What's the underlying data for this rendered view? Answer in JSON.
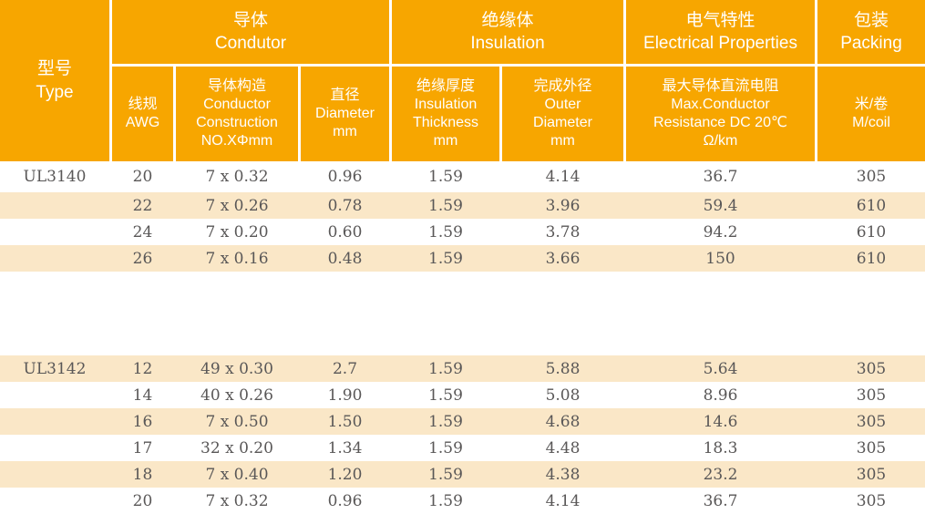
{
  "colors": {
    "header_background": "#F7A600",
    "stripe_background": "#FAE7C7",
    "header_text": "#FFFFFF",
    "body_text": "#595757"
  },
  "header": {
    "type": "型号\nType",
    "groups": {
      "conductor": "导体\nCondutor",
      "insulation": "绝缘体\nInsulation",
      "electrical": "电气特性\nElectrical Properties",
      "packing": "包装\nPacking"
    },
    "columns": {
      "awg": "线规\nAWG",
      "construction": "导体构造\nConductor\nConstruction\nNO.XΦmm",
      "diameter": "直径\nDiameter\nmm",
      "thickness": "绝缘厚度\nInsulation\nThickness\nmm",
      "outer": "完成外径\nOuter\nDiameter\nmm",
      "resistance": "最大导体直流电阻\nMax.Conductor\nResistance DC 20℃\nΩ/km",
      "coil": "米/卷\nM/coil"
    }
  },
  "rows": [
    {
      "type": "UL3140",
      "awg": "20",
      "construction": "7 x 0.32",
      "diameter": "0.96",
      "thickness": "1.59",
      "outer": "4.14",
      "resistance": "36.7",
      "coil": "305"
    },
    {
      "type": "",
      "awg": "22",
      "construction": "7 x 0.26",
      "diameter": "0.78",
      "thickness": "1.59",
      "outer": "3.96",
      "resistance": "59.4",
      "coil": "610"
    },
    {
      "type": "",
      "awg": "24",
      "construction": "7 x 0.20",
      "diameter": "0.60",
      "thickness": "1.59",
      "outer": "3.78",
      "resistance": "94.2",
      "coil": "610"
    },
    {
      "type": "",
      "awg": "26",
      "construction": "7 x 0.16",
      "diameter": "0.48",
      "thickness": "1.59",
      "outer": "3.66",
      "resistance": "150",
      "coil": "610"
    },
    {
      "type": "UL3142",
      "awg": "12",
      "construction": "49 x 0.30",
      "diameter": "2.7",
      "thickness": "1.59",
      "outer": "5.88",
      "resistance": "5.64",
      "coil": "305"
    },
    {
      "type": "",
      "awg": "14",
      "construction": "40 x 0.26",
      "diameter": "1.90",
      "thickness": "1.59",
      "outer": "5.08",
      "resistance": "8.96",
      "coil": "305"
    },
    {
      "type": "",
      "awg": "16",
      "construction": "7 x 0.50",
      "diameter": "1.50",
      "thickness": "1.59",
      "outer": "4.68",
      "resistance": "14.6",
      "coil": "305"
    },
    {
      "type": "",
      "awg": "17",
      "construction": "32 x 0.20",
      "diameter": "1.34",
      "thickness": "1.59",
      "outer": "4.48",
      "resistance": "18.3",
      "coil": "305"
    },
    {
      "type": "",
      "awg": "18",
      "construction": "7 x 0.40",
      "diameter": "1.20",
      "thickness": "1.59",
      "outer": "4.38",
      "resistance": "23.2",
      "coil": "305"
    },
    {
      "type": "",
      "awg": "20",
      "construction": "7 x 0.32",
      "diameter": "0.96",
      "thickness": "1.59",
      "outer": "4.14",
      "resistance": "36.7",
      "coil": "305"
    }
  ]
}
